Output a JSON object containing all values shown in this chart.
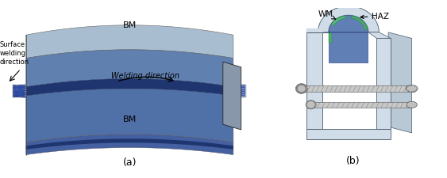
{
  "subfig_a_label": "(a)",
  "subfig_b_label": "(b)",
  "label_BM_top": "BM",
  "label_BM_bottom": "BM",
  "label_surface_welding": "Surface\nwelding\ndirection",
  "label_welding_direction": "Welding direction",
  "label_WM": "WM",
  "label_HAZ": "HAZ",
  "color_top_face": "#a8c0d8",
  "color_front_face_upper": "#6080b0",
  "color_front_face_lower": "#5070a8",
  "color_side_face": "#4a6898",
  "color_weld_dark": "#1e3570",
  "color_weld_mid": "#2a4585",
  "color_clamp_fill": "#d0dde8",
  "color_specimen_blue": "#6688bb",
  "color_haz_green": "#4aaa6a",
  "color_wm_green": "#66cc88",
  "background_color": "#ffffff",
  "figsize": [
    5.63,
    2.26
  ],
  "dpi": 100
}
